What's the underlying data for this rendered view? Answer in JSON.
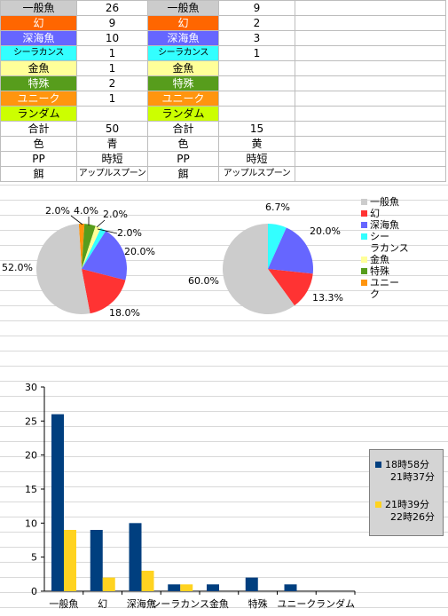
{
  "table": {
    "rows": [
      {
        "cells": [
          "一般魚",
          "26",
          "一般魚",
          "9",
          ""
        ],
        "colors": [
          "#cccccc",
          "",
          "#cccccc",
          "",
          ""
        ],
        "fg": [
          "",
          "",
          "",
          "",
          ""
        ]
      },
      {
        "cells": [
          "幻",
          "9",
          "幻",
          "2",
          ""
        ],
        "colors": [
          "#ff6600",
          "",
          "#ff6600",
          "",
          ""
        ],
        "fg": [
          "#ffffff",
          "",
          "#ffffff",
          "",
          ""
        ]
      },
      {
        "cells": [
          "深海魚",
          "10",
          "深海魚",
          "3",
          ""
        ],
        "colors": [
          "#6666ff",
          "",
          "#6666ff",
          "",
          ""
        ],
        "fg": [
          "#ffffff",
          "",
          "#ffffff",
          "",
          ""
        ]
      },
      {
        "cells": [
          "シーラカンス",
          "1",
          "シーラカンス",
          "1",
          ""
        ],
        "colors": [
          "#33ffff",
          "",
          "#33ffff",
          "",
          ""
        ],
        "fg": [
          "",
          "",
          "",
          "",
          ""
        ],
        "small": [
          true,
          false,
          true,
          false,
          false
        ]
      },
      {
        "cells": [
          "金魚",
          "1",
          "金魚",
          "",
          ""
        ],
        "colors": [
          "#ffff99",
          "",
          "#ffff99",
          "",
          ""
        ],
        "fg": [
          "",
          "",
          "",
          "",
          ""
        ]
      },
      {
        "cells": [
          "特殊",
          "2",
          "特殊",
          "",
          ""
        ],
        "colors": [
          "#579d1c",
          "",
          "#579d1c",
          "",
          ""
        ],
        "fg": [
          "#ffffff",
          "",
          "#ffffff",
          "",
          ""
        ]
      },
      {
        "cells": [
          "ユニーク",
          "1",
          "ユニーク",
          "",
          ""
        ],
        "colors": [
          "#ff950e",
          "",
          "#ff950e",
          "",
          ""
        ],
        "fg": [
          "#ffffff",
          "",
          "#ffffff",
          "",
          ""
        ]
      },
      {
        "cells": [
          "ランダム",
          "",
          "ランダム",
          "",
          ""
        ],
        "colors": [
          "#ccff00",
          "",
          "#ccff00",
          "",
          ""
        ],
        "fg": [
          "",
          "",
          "",
          "",
          ""
        ]
      },
      {
        "cells": [
          "合計",
          "50",
          "合計",
          "15",
          ""
        ],
        "colors": [
          "",
          "",
          "",
          "",
          ""
        ],
        "fg": [
          "",
          "",
          "",
          "",
          ""
        ]
      },
      {
        "cells": [
          "色",
          "青",
          "色",
          "黄",
          ""
        ],
        "colors": [
          "",
          "",
          "",
          "",
          ""
        ],
        "fg": [
          "",
          "",
          "",
          "",
          ""
        ]
      },
      {
        "cells": [
          "PP",
          "時短",
          "PP",
          "時短",
          ""
        ],
        "colors": [
          "",
          "",
          "",
          "",
          ""
        ],
        "fg": [
          "",
          "",
          "",
          "",
          ""
        ]
      },
      {
        "cells": [
          "餌",
          "アップルスプーン",
          "餌",
          "アップルスプーン",
          ""
        ],
        "colors": [
          "",
          "",
          "",
          "",
          ""
        ],
        "fg": [
          "",
          "",
          "",
          "",
          ""
        ],
        "small": [
          false,
          true,
          false,
          true,
          false
        ]
      }
    ]
  },
  "chart_data": [
    {
      "type": "pie",
      "pies": [
        {
          "slices": [
            {
              "category": "一般魚",
              "value": 52.0,
              "label": "52.0%",
              "color": "#cccccc"
            },
            {
              "category": "幻",
              "value": 18.0,
              "label": "18.0%",
              "color": "#ff3333"
            },
            {
              "category": "深海魚",
              "value": 20.0,
              "label": "20.0%",
              "color": "#6666ff"
            },
            {
              "category": "シーラカンス",
              "value": 2.0,
              "label": "2.0%",
              "color": "#33ffff"
            },
            {
              "category": "金魚",
              "value": 2.0,
              "label": "2.0%",
              "color": "#ffff99"
            },
            {
              "category": "特殊",
              "value": 4.0,
              "label": "4.0%",
              "color": "#579d1c"
            },
            {
              "category": "ユニーク",
              "value": 2.0,
              "label": "2.0%",
              "color": "#ff950e"
            }
          ]
        },
        {
          "slices": [
            {
              "category": "一般魚",
              "value": 60.0,
              "label": "60.0%",
              "color": "#cccccc"
            },
            {
              "category": "幻",
              "value": 13.3,
              "label": "13.3%",
              "color": "#ff3333"
            },
            {
              "category": "深海魚",
              "value": 20.0,
              "label": "20.0%",
              "color": "#6666ff"
            },
            {
              "category": "シーラカンス",
              "value": 6.7,
              "label": "6.7%",
              "color": "#33ffff"
            }
          ]
        }
      ],
      "legend": [
        {
          "label": "一般魚",
          "color": "#cccccc"
        },
        {
          "label": "幻",
          "color": "#ff3333"
        },
        {
          "label": "深海魚",
          "color": "#6666ff"
        },
        {
          "label": "シーラカンス",
          "color": "#33ffff"
        },
        {
          "label": "金魚",
          "color": "#ffff99"
        },
        {
          "label": "特殊",
          "color": "#579d1c"
        },
        {
          "label": "ユニーク",
          "color": "#ff950e"
        }
      ],
      "legend_lines": [
        [
          "一般魚"
        ],
        [
          "幻"
        ],
        [
          "深海魚"
        ],
        [
          "シー",
          "ラカンス"
        ],
        [
          "金魚"
        ],
        [
          "特殊"
        ],
        [
          "ユニー",
          "ク"
        ]
      ]
    },
    {
      "type": "bar",
      "categories": [
        "一般魚",
        "幻",
        "深海魚",
        "シーラカンス",
        "金魚",
        "特殊",
        "ユニーク",
        "ランダム"
      ],
      "series": [
        {
          "name": "18時58分",
          "name2": "21時37分",
          "values": [
            26,
            9,
            10,
            1,
            1,
            2,
            1,
            0
          ],
          "color": "#003f7f"
        },
        {
          "name": "21時39分",
          "name2": "22時26分",
          "values": [
            9,
            2,
            3,
            1,
            0,
            0,
            0,
            0
          ],
          "color": "#ffd320"
        }
      ],
      "ylim": [
        0,
        30
      ],
      "yticks": [
        0,
        5,
        10,
        15,
        20,
        25,
        30
      ],
      "grid": false,
      "legend_position": "right"
    }
  ]
}
